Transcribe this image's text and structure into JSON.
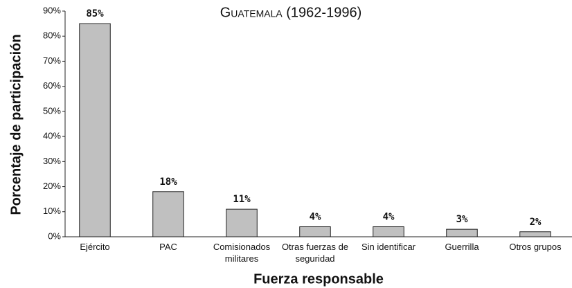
{
  "chart_data": {
    "type": "bar",
    "title": "Guatemala (1962-1996)",
    "x_label": "Fuerza responsable",
    "y_label": "Porcentaje de participación",
    "categories": [
      "Ejército",
      "PAC",
      "Comisionados militares",
      "Otras fuerzas de seguridad",
      "Sin identificar",
      "Guerrilla",
      "Otros grupos"
    ],
    "values": [
      85,
      18,
      11,
      4,
      4,
      3,
      2
    ],
    "value_labels": [
      "85%",
      "18%",
      "11%",
      "4%",
      "4%",
      "3%",
      "2%"
    ],
    "color": "#c0c0c0",
    "ylim": [
      0,
      90
    ],
    "yticks": [
      {
        "value": 0,
        "label": "0%"
      },
      {
        "value": 10,
        "label": "10%"
      },
      {
        "value": 20,
        "label": "20%"
      },
      {
        "value": 30,
        "label": "30%"
      },
      {
        "value": 40,
        "label": "40%"
      },
      {
        "value": 50,
        "label": "50%"
      },
      {
        "value": 60,
        "label": "60%"
      },
      {
        "value": 70,
        "label": "70%"
      },
      {
        "value": 80,
        "label": "80%"
      },
      {
        "value": 90,
        "label": "90%"
      }
    ],
    "grid": false
  }
}
